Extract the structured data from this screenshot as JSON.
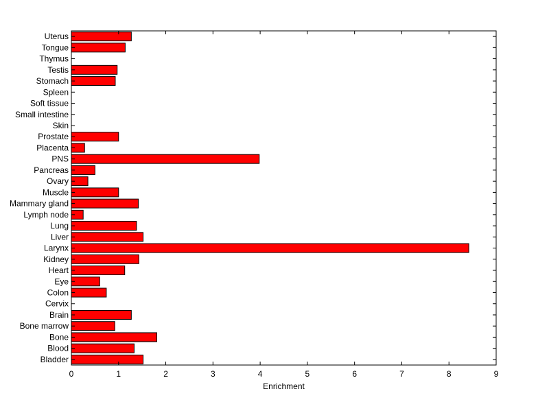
{
  "chart_data": {
    "type": "bar",
    "orientation": "horizontal",
    "title": "",
    "xlabel": "Enrichment",
    "ylabel": "",
    "xlim": [
      0,
      9
    ],
    "xticks": [
      0,
      1,
      2,
      3,
      4,
      5,
      6,
      7,
      8,
      9
    ],
    "grid": false,
    "bar_color": "#ff0000",
    "categories": [
      "Bladder",
      "Blood",
      "Bone",
      "Bone marrow",
      "Brain",
      "Cervix",
      "Colon",
      "Eye",
      "Heart",
      "Kidney",
      "Larynx",
      "Liver",
      "Lung",
      "Lymph node",
      "Mammary gland",
      "Muscle",
      "Ovary",
      "Pancreas",
      "PNS",
      "Placenta",
      "Prostate",
      "Skin",
      "Small intestine",
      "Soft tissue",
      "Spleen",
      "Stomach",
      "Testis",
      "Thymus",
      "Tongue",
      "Uterus"
    ],
    "values": [
      1.52,
      1.33,
      1.81,
      0.92,
      1.27,
      0,
      0.74,
      0.6,
      1.13,
      1.43,
      8.42,
      1.52,
      1.38,
      0.25,
      1.42,
      1.0,
      0.35,
      0.5,
      3.98,
      0.28,
      1.0,
      0,
      0,
      0,
      0,
      0.93,
      0.97,
      0,
      1.14,
      1.27
    ]
  }
}
